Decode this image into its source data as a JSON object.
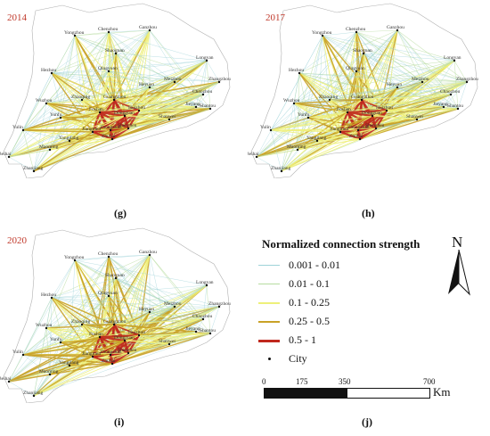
{
  "panels": [
    {
      "year": "2014",
      "label": "(g)"
    },
    {
      "year": "2017",
      "label": "(h)"
    },
    {
      "year": "2020",
      "label": "(i)"
    }
  ],
  "cities": [
    "Ganzhou",
    "Chenzhou",
    "Yongzhou",
    "Longyan",
    "Shaoguan",
    "Qingyuan",
    "Hezhou",
    "Meizhou",
    "Zhangzhou",
    "Heyuan",
    "Wuzhou",
    "Zhaoqing",
    "Guangzhou",
    "Chaozhou",
    "Shantou",
    "Jieyang",
    "Huizhou",
    "Shanwei",
    "Yunfu",
    "Foshan",
    "Dongguan",
    "Shenzhen",
    "Zhongshan",
    "Zhuhai",
    "Jiangmen",
    "Yangjiang",
    "Maoming",
    "Yulin",
    "Beihai",
    "Zhanjiang"
  ],
  "legend": {
    "title": "Normalized connection strength",
    "items": [
      {
        "label": "0.001 - 0.01",
        "color": "#9fd3d8"
      },
      {
        "label": "0.01 - 0.1",
        "color": "#b6dca0"
      },
      {
        "label": "0.1 - 0.25",
        "color": "#eef07a"
      },
      {
        "label": "0.25 - 0.5",
        "color": "#c9a227"
      },
      {
        "label": "0.5 - 1",
        "color": "#c0281e"
      },
      {
        "label": "City",
        "color": "#111111"
      }
    ]
  },
  "north": {
    "label": "N"
  },
  "scale": {
    "ticks": [
      "0",
      "175",
      "350",
      "700"
    ],
    "unit": "Km"
  },
  "extra_label": "(j)"
}
